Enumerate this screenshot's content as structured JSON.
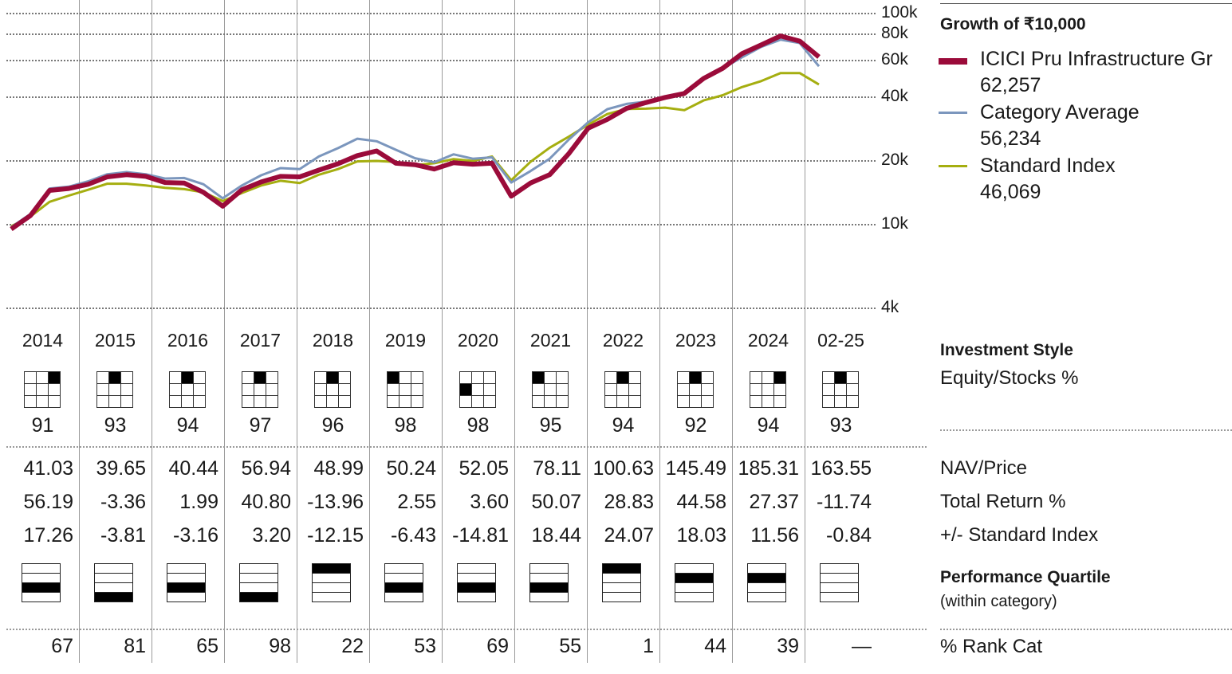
{
  "chart_data": {
    "type": "line",
    "title": "Growth of ₹10,000",
    "y_scale": "log",
    "ylim": [
      4000,
      100000
    ],
    "y_ticks": [
      "100k",
      "80k",
      "60k",
      "40k",
      "20k",
      "10k",
      "4k"
    ],
    "x_start": "2014-01",
    "x_end": "2025-02",
    "series": [
      {
        "name": "ICICI Pru Infrastructure Gr",
        "color": "#9b0b3a",
        "final_value": "62,257",
        "values": [
          9500,
          11000,
          14500,
          14800,
          15500,
          16800,
          17200,
          16900,
          15800,
          15700,
          14200,
          12200,
          14600,
          15900,
          16900,
          16800,
          18100,
          19400,
          21200,
          22300,
          19500,
          19200,
          18300,
          19600,
          19300,
          19500,
          13600,
          15700,
          17200,
          21700,
          28600,
          31500,
          35500,
          37800,
          40000,
          41800,
          49200,
          55000,
          64500,
          71000,
          78300,
          74000,
          62257
        ]
      },
      {
        "name": "Category Average",
        "color": "#7b96bd",
        "final_value": "56,234",
        "values": [
          9700,
          11200,
          14800,
          15100,
          16000,
          17300,
          17700,
          17300,
          16500,
          16600,
          15500,
          13300,
          15300,
          17100,
          18500,
          18300,
          21000,
          23000,
          25500,
          24800,
          22600,
          20600,
          19700,
          21500,
          20500,
          20800,
          15800,
          17900,
          20500,
          25300,
          30500,
          35200,
          37300,
          38200,
          39500,
          41300,
          49800,
          55000,
          62000,
          69500,
          75200,
          72500,
          56234
        ]
      },
      {
        "name": "Standard Index",
        "color": "#a5ae10",
        "final_value": "46,069",
        "values": [
          9800,
          10900,
          12800,
          13700,
          14600,
          15600,
          15600,
          15300,
          14900,
          14700,
          14200,
          12900,
          14100,
          15300,
          16100,
          15700,
          17200,
          18300,
          19900,
          20000,
          19800,
          19100,
          19500,
          20400,
          20000,
          21000,
          16200,
          19800,
          23100,
          26100,
          29700,
          33400,
          35300,
          35400,
          35800,
          34800,
          38700,
          41000,
          44800,
          47800,
          52200,
          52200,
          46069
        ]
      }
    ],
    "years": [
      "2014",
      "2015",
      "2016",
      "2017",
      "2018",
      "2019",
      "2020",
      "2021",
      "2022",
      "2023",
      "2024",
      "02-25"
    ]
  },
  "investment_style": {
    "title": "Investment Style",
    "subtitle": "Equity/Stocks %",
    "equity_pct": [
      "91",
      "93",
      "94",
      "97",
      "96",
      "98",
      "98",
      "95",
      "94",
      "92",
      "94",
      "93"
    ],
    "style_cell": [
      [
        0,
        2
      ],
      [
        0,
        1
      ],
      [
        0,
        1
      ],
      [
        0,
        1
      ],
      [
        0,
        1
      ],
      [
        0,
        0
      ],
      [
        1,
        0
      ],
      [
        0,
        0
      ],
      [
        0,
        1
      ],
      [
        0,
        1
      ],
      [
        0,
        2
      ],
      [
        0,
        1
      ]
    ]
  },
  "table": {
    "row_labels": [
      "NAV/Price",
      "Total Return %",
      "+/- Standard Index"
    ],
    "nav": [
      "41.03",
      "39.65",
      "40.44",
      "56.94",
      "48.99",
      "50.24",
      "52.05",
      "78.11",
      "100.63",
      "145.49",
      "185.31",
      "163.55"
    ],
    "total_return": [
      "56.19",
      "-3.36",
      "1.99",
      "40.80",
      "-13.96",
      "2.55",
      "3.60",
      "50.07",
      "28.83",
      "44.58",
      "27.37",
      "-11.74"
    ],
    "vs_index": [
      "17.26",
      "-3.81",
      "-3.16",
      "3.20",
      "-12.15",
      "-6.43",
      "-14.81",
      "18.44",
      "24.07",
      "18.03",
      "11.56",
      "-0.84"
    ]
  },
  "performance_quartile": {
    "title": "Performance Quartile",
    "subtitle": "(within category)",
    "quartile": [
      3,
      4,
      3,
      4,
      1,
      3,
      3,
      3,
      1,
      2,
      2,
      0
    ]
  },
  "rank": {
    "label": "% Rank Cat",
    "values": [
      "67",
      "81",
      "65",
      "98",
      "22",
      "53",
      "69",
      "55",
      "1",
      "44",
      "39",
      "—"
    ]
  }
}
